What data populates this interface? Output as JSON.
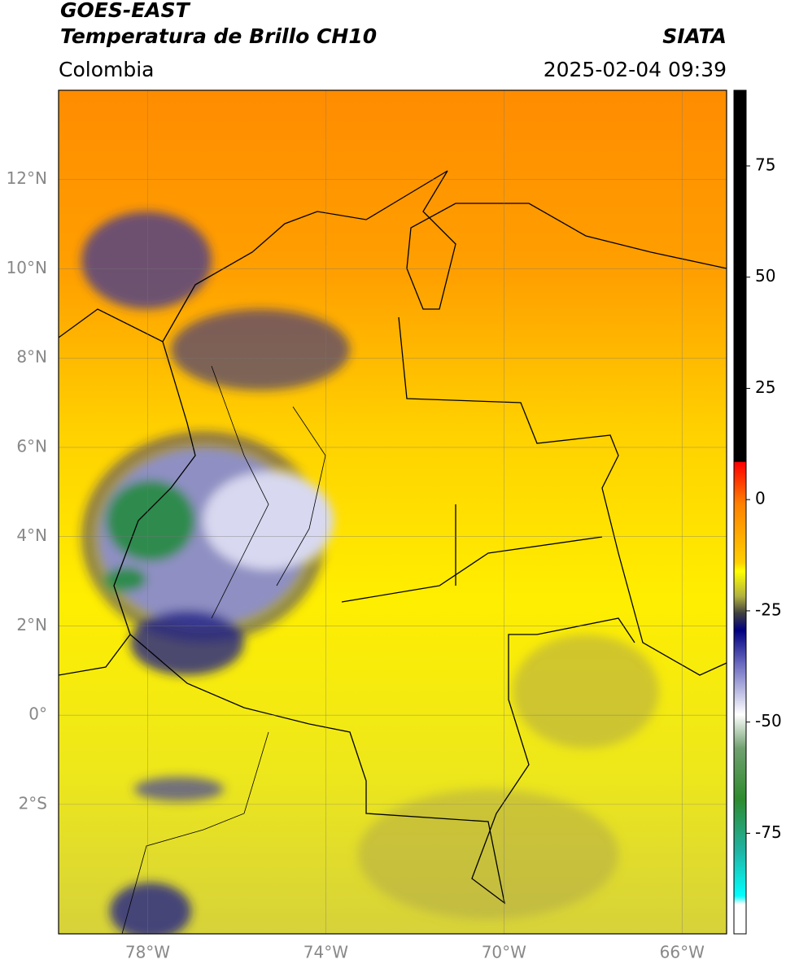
{
  "header": {
    "title": "GOES-EAST",
    "subtitle": "Temperatura de Brillo CH10",
    "source": "SIATA",
    "region": "Colombia",
    "datetime": "2025-02-04 09:39"
  },
  "map": {
    "xlim": [
      -80,
      -65
    ],
    "ylim": [
      -4.9,
      14
    ],
    "xticks": [
      {
        "value": -78,
        "label": "78°W"
      },
      {
        "value": -74,
        "label": "74°W"
      },
      {
        "value": -70,
        "label": "70°W"
      },
      {
        "value": -66,
        "label": "66°W"
      }
    ],
    "yticks": [
      {
        "value": 12,
        "label": "12°N"
      },
      {
        "value": 10,
        "label": "10°N"
      },
      {
        "value": 8,
        "label": "8°N"
      },
      {
        "value": 6,
        "label": "6°N"
      },
      {
        "value": 4,
        "label": "4°N"
      },
      {
        "value": 2,
        "label": "2°N"
      },
      {
        "value": 0,
        "label": "0°"
      },
      {
        "value": -2,
        "label": "2°S"
      }
    ],
    "grid": true
  },
  "colorbar": {
    "lim": [
      -97.6,
      92
    ],
    "ticks": [
      75,
      50,
      25,
      0,
      -25,
      -50,
      -75
    ]
  }
}
